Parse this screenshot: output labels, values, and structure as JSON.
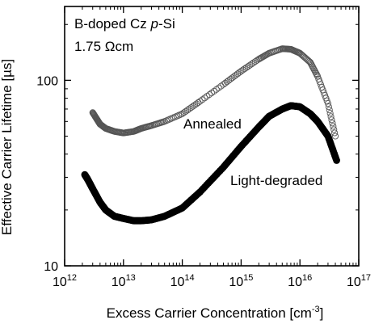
{
  "chart_data": {
    "type": "scatter",
    "xlabel": "Excess Carrier Concentration [cm⁻³]",
    "ylabel": "Effective Carrier Lifetime [µs]",
    "xscale": "log",
    "yscale": "log",
    "xlim": [
      1000000000000.0,
      1e+17
    ],
    "ylim": [
      10,
      250
    ],
    "xticks": [
      1000000000000.0,
      10000000000000.0,
      100000000000000.0,
      1000000000000000.0,
      1e+16,
      1e+17
    ],
    "yticks": [
      10,
      100
    ],
    "xticklabels": [
      {
        "base": "10",
        "exp": "12"
      },
      {
        "base": "10",
        "exp": "13"
      },
      {
        "base": "10",
        "exp": "14"
      },
      {
        "base": "10",
        "exp": "15"
      },
      {
        "base": "10",
        "exp": "16"
      },
      {
        "base": "10",
        "exp": "17"
      }
    ],
    "yticklabels": [
      "10",
      "100"
    ],
    "annotations": [
      {
        "text_parts": [
          "B-doped Cz ",
          "p",
          "-Si"
        ]
      },
      {
        "text": "1.75 Ωcm"
      }
    ],
    "series": [
      {
        "name": "Annealed",
        "marker": "open-circle",
        "color": "#555555",
        "x": [
          3000000000000.0,
          3500000000000.0,
          4000000000000.0,
          5000000000000.0,
          7000000000000.0,
          10000000000000.0,
          15000000000000.0,
          20000000000000.0,
          30000000000000.0,
          50000000000000.0,
          100000000000000.0,
          200000000000000.0,
          500000000000000.0,
          1000000000000000.0,
          2000000000000000.0,
          3000000000000000.0,
          5000000000000000.0,
          7000000000000000.0,
          1e+16,
          1.5e+16,
          2e+16,
          3e+16,
          4e+16
        ],
        "y": [
          67,
          62,
          58,
          55,
          53,
          52,
          53,
          55,
          57,
          60,
          66,
          77,
          95,
          112,
          130,
          140,
          148,
          147,
          140,
          125,
          105,
          75,
          50
        ]
      },
      {
        "name": "Light-degraded",
        "marker": "filled-circle",
        "color": "#000000",
        "x": [
          2200000000000.0,
          2500000000000.0,
          3000000000000.0,
          4000000000000.0,
          5000000000000.0,
          7000000000000.0,
          10000000000000.0,
          15000000000000.0,
          20000000000000.0,
          30000000000000.0,
          50000000000000.0,
          100000000000000.0,
          200000000000000.0,
          500000000000000.0,
          1000000000000000.0,
          2000000000000000.0,
          3000000000000000.0,
          5000000000000000.0,
          7000000000000000.0,
          1e+16,
          1.5e+16,
          2e+16,
          3e+16,
          4.2e+16
        ],
        "y": [
          31,
          29,
          26,
          22,
          20,
          18.5,
          18,
          17.5,
          17.5,
          17.7,
          18.5,
          20.5,
          25,
          34,
          44,
          56,
          64,
          70,
          73,
          72,
          66,
          60,
          50,
          37
        ]
      }
    ]
  }
}
